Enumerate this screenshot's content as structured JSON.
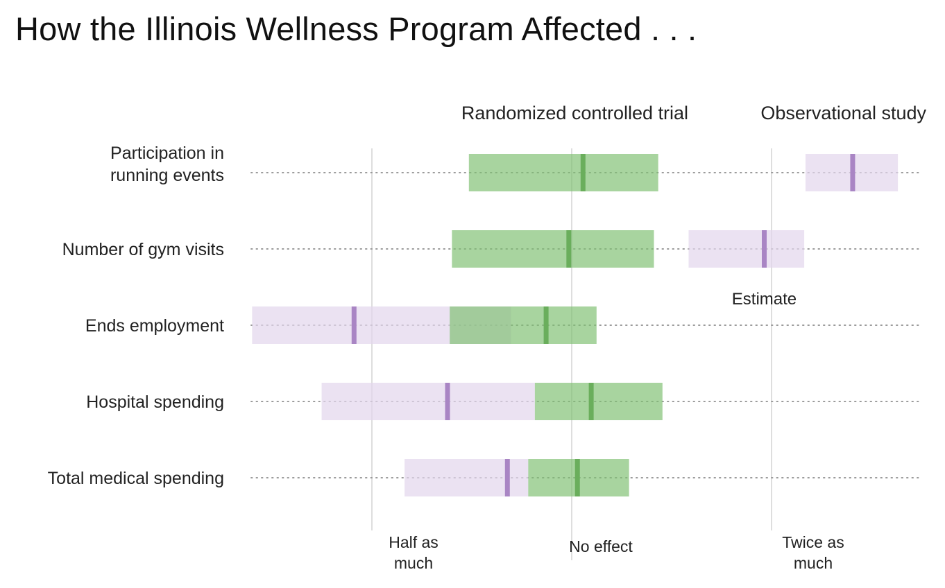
{
  "title": "How the Illinois Wellness Program Affected . . .",
  "chart_data": {
    "type": "interval",
    "scale": "log2",
    "xlim": [
      0.335,
      2.9
    ],
    "reference_lines": [
      {
        "value": 0.5,
        "label_lines": [
          "Half as",
          "much"
        ]
      },
      {
        "value": 1,
        "label_lines": [
          "No effect"
        ]
      },
      {
        "value": 2,
        "label_lines": [
          "Twice as",
          "much"
        ]
      }
    ],
    "series": [
      {
        "name": "Randomized controlled trial",
        "color": "#7fbf72",
        "marker_color": "#6aae5c"
      },
      {
        "name": "Observational study",
        "color": "#e3d6ec",
        "marker_color": "#a985c4"
      }
    ],
    "estimate_annotation": "Estimate",
    "rows": [
      {
        "label_lines": [
          "Participation in",
          "running events"
        ],
        "rct": {
          "low": 0.7,
          "estimate": 1.04,
          "high": 1.35
        },
        "obs": {
          "low": 2.25,
          "estimate": 2.65,
          "high": 3.1
        }
      },
      {
        "label_lines": [
          "Number of gym visits"
        ],
        "rct": {
          "low": 0.66,
          "estimate": 0.99,
          "high": 1.33
        },
        "obs": {
          "low": 1.5,
          "estimate": 1.95,
          "high": 2.24
        }
      },
      {
        "label_lines": [
          "Ends employment"
        ],
        "rct": {
          "low": 0.655,
          "estimate": 0.915,
          "high": 1.09
        },
        "obs": {
          "low": 0.33,
          "estimate": 0.47,
          "high": 0.81
        }
      },
      {
        "label_lines": [
          "Hospital spending"
        ],
        "rct": {
          "low": 0.88,
          "estimate": 1.07,
          "high": 1.37
        },
        "obs": {
          "low": 0.42,
          "estimate": 0.65,
          "high": 0.88
        }
      },
      {
        "label_lines": [
          "Total medical spending"
        ],
        "rct": {
          "low": 0.86,
          "estimate": 1.02,
          "high": 1.22
        },
        "obs": {
          "low": 0.56,
          "estimate": 0.8,
          "high": 0.86
        }
      }
    ]
  }
}
